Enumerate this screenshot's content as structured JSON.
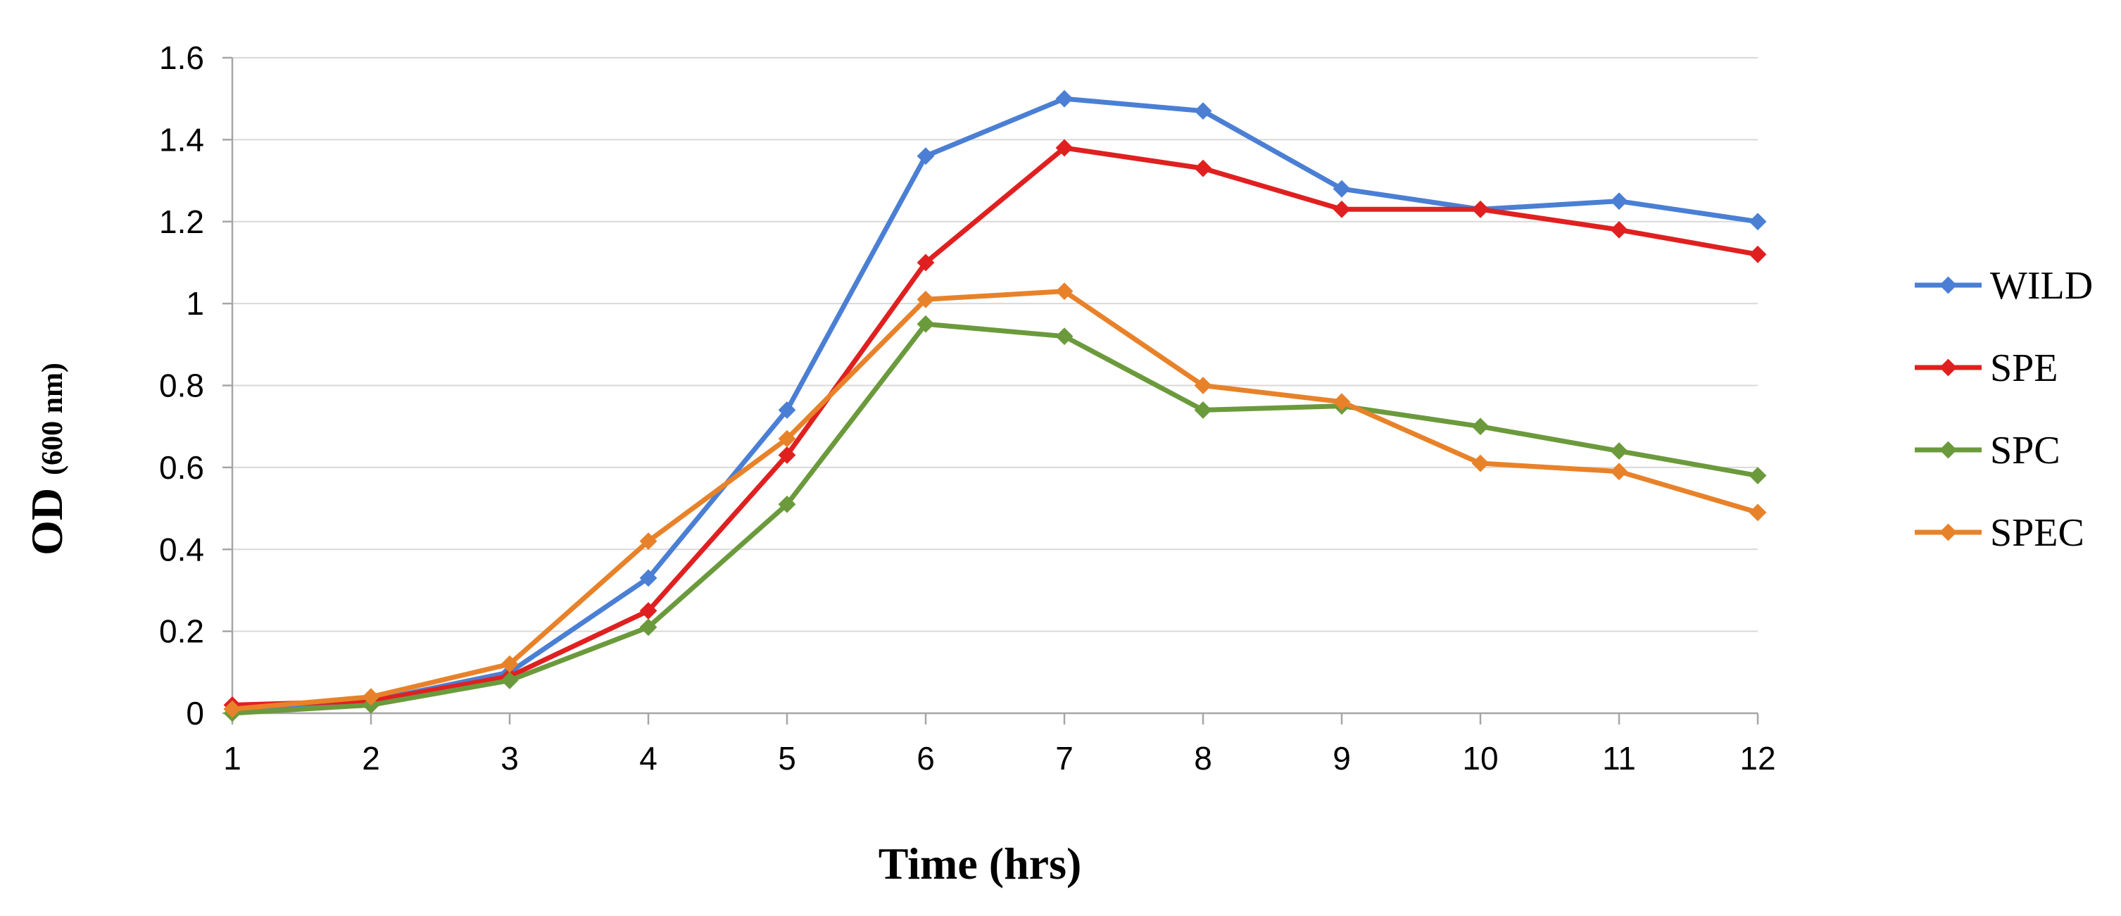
{
  "chart_data": {
    "type": "line",
    "title": "",
    "xlabel": "Time (hrs)",
    "ylabel_main": "OD",
    "ylabel_sub": "(600 nm)",
    "x": [
      1,
      2,
      3,
      4,
      5,
      6,
      7,
      8,
      9,
      10,
      11,
      12
    ],
    "x_tick_labels": [
      "1",
      "2",
      "3",
      "4",
      "5",
      "6",
      "7",
      "8",
      "9",
      "10",
      "11",
      "12"
    ],
    "y_ticks": [
      0,
      0.2,
      0.4,
      0.6,
      0.8,
      1,
      1.2,
      1.4,
      1.6
    ],
    "y_tick_labels": [
      "0",
      "0.2",
      "0.4",
      "0.6",
      "0.8",
      "1",
      "1.2",
      "1.4",
      "1.6"
    ],
    "ylim": [
      0,
      1.6
    ],
    "grid": "horizontal",
    "legend_position": "right",
    "series": [
      {
        "name": "WILD",
        "color": "#4a7fd4",
        "values": [
          0.01,
          0.03,
          0.1,
          0.33,
          0.74,
          1.36,
          1.5,
          1.47,
          1.28,
          1.23,
          1.25,
          1.2
        ]
      },
      {
        "name": "SPE",
        "color": "#e02020",
        "values": [
          0.02,
          0.03,
          0.09,
          0.25,
          0.63,
          1.1,
          1.38,
          1.33,
          1.23,
          1.23,
          1.18,
          1.12
        ]
      },
      {
        "name": "SPC",
        "color": "#6b9a3c",
        "values": [
          0.0,
          0.02,
          0.08,
          0.21,
          0.51,
          0.95,
          0.92,
          0.74,
          0.75,
          0.7,
          0.64,
          0.58
        ]
      },
      {
        "name": "SPEC",
        "color": "#e8822a",
        "values": [
          0.01,
          0.04,
          0.12,
          0.42,
          0.67,
          1.01,
          1.03,
          0.8,
          0.76,
          0.61,
          0.59,
          0.49
        ]
      }
    ]
  }
}
